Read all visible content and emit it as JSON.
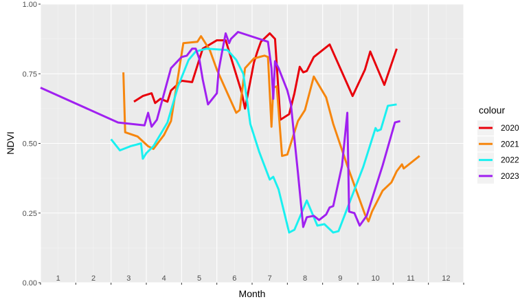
{
  "chart_data": {
    "type": "line",
    "title": "",
    "xlabel": "Month",
    "ylabel": "NDVI",
    "xlim": [
      0.5,
      12.5
    ],
    "ylim": [
      0,
      1
    ],
    "y_ticks": [
      "0.00",
      "0.25",
      "0.50",
      "0.75",
      "1.00"
    ],
    "x_tick_labels": [
      "1",
      "2",
      "3",
      "4",
      "5",
      "6",
      "7",
      "8",
      "9",
      "10",
      "11",
      "12"
    ],
    "grid": true,
    "legend": {
      "title": "colour",
      "position": "right"
    },
    "series": [
      {
        "name": "2020",
        "color": "#e8000b",
        "points": [
          [
            3.15,
            0.65
          ],
          [
            3.4,
            0.67
          ],
          [
            3.65,
            0.68
          ],
          [
            3.75,
            0.645
          ],
          [
            3.9,
            0.66
          ],
          [
            4.1,
            0.65
          ],
          [
            4.2,
            0.69
          ],
          [
            4.5,
            0.725
          ],
          [
            4.8,
            0.72
          ],
          [
            5.1,
            0.84
          ],
          [
            5.5,
            0.87
          ],
          [
            5.75,
            0.87
          ],
          [
            6.2,
            0.685
          ],
          [
            6.3,
            0.625
          ],
          [
            6.55,
            0.79
          ],
          [
            6.65,
            0.83
          ],
          [
            6.75,
            0.865
          ],
          [
            7.0,
            0.895
          ],
          [
            7.15,
            0.875
          ],
          [
            7.3,
            0.585
          ],
          [
            7.55,
            0.605
          ],
          [
            7.7,
            0.68
          ],
          [
            7.85,
            0.775
          ],
          [
            7.95,
            0.755
          ],
          [
            8.05,
            0.76
          ],
          [
            8.25,
            0.81
          ],
          [
            8.7,
            0.855
          ],
          [
            9.35,
            0.67
          ],
          [
            9.7,
            0.765
          ],
          [
            9.85,
            0.83
          ],
          [
            10.25,
            0.71
          ],
          [
            10.6,
            0.84
          ]
        ]
      },
      {
        "name": "2021",
        "color": "#f6860e",
        "points": [
          [
            2.85,
            0.755
          ],
          [
            2.9,
            0.54
          ],
          [
            3.25,
            0.525
          ],
          [
            3.55,
            0.49
          ],
          [
            3.7,
            0.48
          ],
          [
            4.0,
            0.53
          ],
          [
            4.2,
            0.58
          ],
          [
            4.55,
            0.86
          ],
          [
            4.95,
            0.865
          ],
          [
            5.05,
            0.885
          ],
          [
            5.3,
            0.835
          ],
          [
            5.5,
            0.765
          ],
          [
            5.8,
            0.68
          ],
          [
            6.05,
            0.61
          ],
          [
            6.15,
            0.62
          ],
          [
            6.3,
            0.77
          ],
          [
            6.55,
            0.805
          ],
          [
            6.85,
            0.815
          ],
          [
            6.95,
            0.81
          ],
          [
            7.05,
            0.56
          ],
          [
            7.1,
            0.7
          ],
          [
            7.2,
            0.705
          ],
          [
            7.35,
            0.455
          ],
          [
            7.5,
            0.46
          ],
          [
            7.8,
            0.58
          ],
          [
            8.0,
            0.62
          ],
          [
            8.25,
            0.74
          ],
          [
            8.6,
            0.665
          ],
          [
            8.8,
            0.57
          ],
          [
            9.2,
            0.42
          ],
          [
            9.5,
            0.315
          ],
          [
            9.7,
            0.245
          ],
          [
            9.8,
            0.22
          ],
          [
            9.9,
            0.255
          ],
          [
            10.2,
            0.33
          ],
          [
            10.45,
            0.36
          ],
          [
            10.6,
            0.4
          ],
          [
            10.75,
            0.425
          ],
          [
            10.8,
            0.41
          ],
          [
            11.25,
            0.455
          ]
        ]
      },
      {
        "name": "2022",
        "color": "#1af0f0",
        "points": [
          [
            2.5,
            0.515
          ],
          [
            2.75,
            0.475
          ],
          [
            3.05,
            0.49
          ],
          [
            3.35,
            0.5
          ],
          [
            3.4,
            0.445
          ],
          [
            3.5,
            0.465
          ],
          [
            3.7,
            0.49
          ],
          [
            4.1,
            0.575
          ],
          [
            4.4,
            0.705
          ],
          [
            4.7,
            0.8
          ],
          [
            4.9,
            0.83
          ],
          [
            5.2,
            0.84
          ],
          [
            5.8,
            0.835
          ],
          [
            6.05,
            0.8
          ],
          [
            6.25,
            0.75
          ],
          [
            6.45,
            0.57
          ],
          [
            6.7,
            0.47
          ],
          [
            7.0,
            0.37
          ],
          [
            7.1,
            0.38
          ],
          [
            7.25,
            0.335
          ],
          [
            7.55,
            0.18
          ],
          [
            7.7,
            0.19
          ],
          [
            7.9,
            0.25
          ],
          [
            8.05,
            0.295
          ],
          [
            8.35,
            0.205
          ],
          [
            8.55,
            0.21
          ],
          [
            8.8,
            0.18
          ],
          [
            8.95,
            0.185
          ],
          [
            9.3,
            0.3
          ],
          [
            9.65,
            0.415
          ],
          [
            10.0,
            0.555
          ],
          [
            10.05,
            0.545
          ],
          [
            10.15,
            0.55
          ],
          [
            10.35,
            0.635
          ],
          [
            10.6,
            0.64
          ]
        ]
      },
      {
        "name": "2023",
        "color": "#a020f0",
        "points": [
          [
            0.5,
            0.7
          ],
          [
            2.7,
            0.575
          ],
          [
            3.45,
            0.565
          ],
          [
            3.55,
            0.61
          ],
          [
            3.65,
            0.56
          ],
          [
            3.8,
            0.585
          ],
          [
            4.2,
            0.77
          ],
          [
            4.5,
            0.81
          ],
          [
            4.65,
            0.815
          ],
          [
            4.8,
            0.84
          ],
          [
            4.9,
            0.84
          ],
          [
            5.0,
            0.805
          ],
          [
            5.1,
            0.73
          ],
          [
            5.25,
            0.64
          ],
          [
            5.5,
            0.68
          ],
          [
            5.55,
            0.76
          ],
          [
            5.65,
            0.83
          ],
          [
            5.75,
            0.895
          ],
          [
            5.85,
            0.86
          ],
          [
            5.9,
            0.875
          ],
          [
            6.1,
            0.9
          ],
          [
            6.95,
            0.865
          ],
          [
            7.05,
            0.77
          ],
          [
            7.1,
            0.66
          ],
          [
            7.15,
            0.795
          ],
          [
            7.25,
            0.77
          ],
          [
            7.5,
            0.69
          ],
          [
            7.6,
            0.64
          ],
          [
            7.8,
            0.395
          ],
          [
            7.95,
            0.2
          ],
          [
            8.05,
            0.235
          ],
          [
            8.25,
            0.24
          ],
          [
            8.4,
            0.225
          ],
          [
            8.6,
            0.245
          ],
          [
            8.7,
            0.27
          ],
          [
            8.8,
            0.275
          ],
          [
            9.05,
            0.42
          ],
          [
            9.2,
            0.61
          ],
          [
            9.25,
            0.255
          ],
          [
            9.4,
            0.25
          ],
          [
            9.55,
            0.205
          ],
          [
            9.75,
            0.24
          ],
          [
            10.2,
            0.42
          ],
          [
            10.55,
            0.575
          ],
          [
            10.7,
            0.58
          ]
        ]
      }
    ]
  }
}
